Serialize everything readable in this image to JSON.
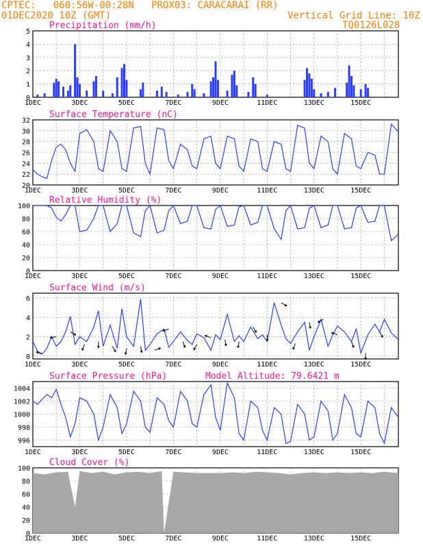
{
  "header": {
    "line1": "CPTEC:   060:56W-00:28N   PROX03: CARACARAI (RR)",
    "line2": "01DEC2020 10Z (GMT)",
    "grid_note": "Vertical Grid Line: 10Z",
    "run_id": "TQ0126L028"
  },
  "colors": {
    "header": "#ff7f00",
    "title": "#ff1493",
    "line": "#2a3cff",
    "cloud": "#a8a8a8",
    "wind_arrow": "#000000"
  },
  "chart_data": [
    {
      "type": "bar",
      "title": "Precipitation (mm/h)",
      "xlim": [
        1,
        16.6
      ],
      "ylim": [
        0,
        5
      ],
      "yticks": [
        0,
        1,
        2,
        3,
        4,
        5
      ],
      "xticks": [
        "1DEC",
        "3DEC",
        "5DEC",
        "7DEC",
        "9DEC",
        "11DEC",
        "13DEC",
        "15DEC"
      ],
      "x": [
        1.2,
        1.5,
        1.9,
        2.0,
        2.1,
        2.3,
        2.5,
        2.6,
        2.8,
        2.9,
        3.0,
        3.3,
        3.6,
        3.7,
        4.0,
        4.4,
        4.6,
        4.8,
        4.9,
        5.0,
        5.6,
        5.7,
        6.3,
        6.5,
        6.7,
        7.2,
        7.6,
        7.8,
        7.9,
        8.3,
        8.6,
        8.7,
        8.8,
        8.9,
        9.3,
        9.5,
        9.6,
        9.7,
        10.2,
        10.4,
        10.5,
        11.0,
        12.6,
        12.7,
        12.8,
        12.9,
        13.0,
        13.3,
        13.6,
        13.9,
        14.4,
        14.5,
        14.6,
        14.7,
        15.0,
        15.2,
        15.3
      ],
      "values": [
        0.2,
        0.3,
        1.1,
        1.4,
        1.2,
        0.8,
        0.5,
        0.9,
        4.0,
        1.5,
        1.0,
        0.5,
        1.2,
        1.6,
        0.5,
        0.3,
        1.5,
        2.2,
        2.5,
        1.3,
        0.6,
        1.1,
        0.5,
        0.8,
        0.4,
        0.2,
        0.4,
        1.0,
        0.6,
        0.3,
        1.2,
        1.5,
        2.7,
        1.3,
        0.5,
        1.7,
        2.0,
        0.9,
        0.4,
        1.5,
        1.0,
        0.2,
        1.3,
        2.2,
        1.8,
        1.4,
        0.6,
        0.3,
        0.4,
        0.7,
        1.1,
        2.4,
        1.6,
        0.9,
        0.6,
        1.0,
        0.7
      ]
    },
    {
      "type": "line",
      "title": "Surface Temperature (nC)",
      "xlim": [
        1,
        16.6
      ],
      "ylim": [
        20,
        32
      ],
      "yticks": [
        20,
        22,
        24,
        26,
        28,
        30,
        32
      ],
      "xticks": [
        "1DEC",
        "3DEC",
        "5DEC",
        "7DEC",
        "9DEC",
        "11DEC",
        "13DEC",
        "15DEC"
      ],
      "x": [
        1.0,
        1.2,
        1.4,
        1.6,
        1.8,
        2.0,
        2.2,
        2.4,
        2.6,
        2.8,
        3.0,
        3.3,
        3.6,
        3.8,
        4.0,
        4.3,
        4.6,
        4.8,
        5.0,
        5.3,
        5.6,
        5.8,
        6.0,
        6.3,
        6.6,
        6.8,
        7.0,
        7.3,
        7.6,
        7.8,
        8.0,
        8.3,
        8.6,
        8.8,
        9.0,
        9.3,
        9.6,
        9.8,
        10.0,
        10.3,
        10.6,
        10.8,
        11.0,
        11.3,
        11.6,
        11.8,
        12.0,
        12.3,
        12.6,
        12.8,
        13.0,
        13.3,
        13.6,
        13.8,
        14.0,
        14.3,
        14.6,
        14.8,
        15.0,
        15.3,
        15.6,
        15.8,
        16.0,
        16.3,
        16.6
      ],
      "values": [
        22.8,
        22.0,
        21.5,
        21.2,
        24.5,
        27.0,
        27.5,
        26.5,
        24.0,
        22.5,
        29.5,
        30.2,
        28.0,
        23.0,
        22.5,
        30.0,
        28.0,
        23.0,
        22.5,
        30.5,
        30.8,
        24.0,
        22.0,
        30.5,
        30.2,
        24.5,
        23.0,
        27.5,
        26.5,
        23.5,
        23.0,
        28.5,
        29.0,
        24.0,
        23.0,
        29.0,
        28.5,
        23.5,
        22.5,
        28.5,
        28.0,
        23.0,
        22.5,
        28.0,
        27.5,
        23.0,
        22.5,
        31.0,
        30.5,
        24.0,
        23.0,
        29.0,
        28.0,
        23.0,
        22.0,
        29.5,
        28.5,
        23.5,
        23.0,
        26.0,
        25.5,
        22.0,
        22.0,
        31.2,
        29.8
      ]
    },
    {
      "type": "line",
      "title": "Relative Humidity (%)",
      "xlim": [
        1,
        16.6
      ],
      "ylim": [
        0,
        100
      ],
      "yticks": [
        0,
        20,
        40,
        60,
        80,
        100
      ],
      "xticks": [
        "1DEC",
        "3DEC",
        "5DEC",
        "7DEC",
        "9DEC",
        "11DEC",
        "13DEC",
        "15DEC"
      ],
      "x": [
        1.0,
        1.2,
        1.4,
        1.6,
        1.8,
        2.0,
        2.2,
        2.4,
        2.6,
        2.8,
        3.0,
        3.3,
        3.6,
        3.8,
        4.0,
        4.3,
        4.6,
        4.8,
        5.0,
        5.3,
        5.6,
        5.8,
        6.0,
        6.3,
        6.6,
        6.8,
        7.0,
        7.3,
        7.6,
        7.8,
        8.0,
        8.3,
        8.6,
        8.8,
        9.0,
        9.3,
        9.6,
        9.8,
        10.0,
        10.3,
        10.6,
        10.8,
        11.0,
        11.3,
        11.6,
        11.8,
        12.0,
        12.3,
        12.6,
        12.8,
        13.0,
        13.3,
        13.6,
        13.8,
        14.0,
        14.3,
        14.6,
        14.8,
        15.0,
        15.3,
        15.6,
        15.8,
        16.0,
        16.3,
        16.6
      ],
      "values": [
        100,
        100,
        100,
        100,
        96,
        82,
        76,
        86,
        100,
        100,
        60,
        62,
        80,
        100,
        100,
        60,
        72,
        100,
        100,
        58,
        52,
        92,
        100,
        58,
        62,
        92,
        100,
        72,
        76,
        100,
        100,
        66,
        64,
        94,
        100,
        68,
        70,
        98,
        100,
        70,
        74,
        100,
        100,
        64,
        48,
        92,
        100,
        64,
        66,
        96,
        100,
        66,
        70,
        100,
        100,
        64,
        66,
        96,
        100,
        74,
        76,
        100,
        100,
        46,
        56
      ]
    },
    {
      "type": "line",
      "title": "Surface Wind (m/s)",
      "xlim": [
        1,
        16.6
      ],
      "ylim": [
        -0.3,
        6.5
      ],
      "yticks": [
        0,
        2,
        4,
        6
      ],
      "xticks": [
        "1DEC",
        "3DEC",
        "5DEC",
        "7DEC",
        "9DEC",
        "11DEC",
        "13DEC",
        "15DEC"
      ],
      "x": [
        1.0,
        1.2,
        1.4,
        1.6,
        1.8,
        2.0,
        2.2,
        2.4,
        2.6,
        2.8,
        3.0,
        3.3,
        3.6,
        3.8,
        4.0,
        4.3,
        4.6,
        4.8,
        5.0,
        5.3,
        5.6,
        5.8,
        6.0,
        6.3,
        6.6,
        6.8,
        7.0,
        7.3,
        7.6,
        7.8,
        8.0,
        8.3,
        8.6,
        8.8,
        9.0,
        9.3,
        9.6,
        9.8,
        10.0,
        10.3,
        10.6,
        10.8,
        11.0,
        11.3,
        11.6,
        11.8,
        12.0,
        12.3,
        12.6,
        12.8,
        13.0,
        13.3,
        13.6,
        13.8,
        14.0,
        14.3,
        14.6,
        14.8,
        15.0,
        15.3,
        15.6,
        15.8,
        16.0,
        16.3,
        16.6
      ],
      "values": [
        1.5,
        0.5,
        0.2,
        0.8,
        2.0,
        1.0,
        1.5,
        2.5,
        4.1,
        1.2,
        2.0,
        1.5,
        3.0,
        4.7,
        1.0,
        3.2,
        0.8,
        4.9,
        2.0,
        1.0,
        5.9,
        0.6,
        1.2,
        2.3,
        2.8,
        0.9,
        1.5,
        2.5,
        1.6,
        1.2,
        2.3,
        1.9,
        0.6,
        2.2,
        1.7,
        4.3,
        1.5,
        2.1,
        1.5,
        3.0,
        1.8,
        2.2,
        1.5,
        5.5,
        3.2,
        1.8,
        1.3,
        2.5,
        3.5,
        0.6,
        2.0,
        3.8,
        1.0,
        2.2,
        3.1,
        2.5,
        1.5,
        2.8,
        0.3,
        2.2,
        3.3,
        2.5,
        3.8,
        2.4,
        1.7
      ],
      "arrows_note": "direction arrows along series"
    },
    {
      "type": "line",
      "title": "Surface Pressure (hPa)",
      "annotation": "Model Altitude: 79.6421 m",
      "xlim": [
        1,
        16.6
      ],
      "ylim": [
        995,
        1005
      ],
      "yticks": [
        996,
        998,
        1000,
        1002,
        1004
      ],
      "xticks": [
        "1DEC",
        "3DEC",
        "5DEC",
        "7DEC",
        "9DEC",
        "11DEC",
        "13DEC",
        "15DEC"
      ],
      "x": [
        1.0,
        1.2,
        1.4,
        1.6,
        1.8,
        2.0,
        2.2,
        2.4,
        2.6,
        2.8,
        3.0,
        3.3,
        3.6,
        3.8,
        4.0,
        4.3,
        4.6,
        4.8,
        5.0,
        5.3,
        5.6,
        5.8,
        6.0,
        6.3,
        6.6,
        6.8,
        7.0,
        7.3,
        7.6,
        7.8,
        8.0,
        8.3,
        8.6,
        8.8,
        9.0,
        9.3,
        9.6,
        9.8,
        10.0,
        10.3,
        10.6,
        10.8,
        11.0,
        11.3,
        11.6,
        11.8,
        12.0,
        12.3,
        12.6,
        12.8,
        13.0,
        13.3,
        13.6,
        13.8,
        14.0,
        14.3,
        14.6,
        14.8,
        15.0,
        15.3,
        15.6,
        15.8,
        16.0,
        16.3,
        16.6
      ],
      "values": [
        1002.0,
        1001.5,
        1002.3,
        1003.0,
        1002.5,
        1003.8,
        1001.5,
        999.5,
        996.5,
        998.5,
        1002.5,
        1002.0,
        1000.0,
        996.0,
        998.0,
        1003.0,
        1001.0,
        997.0,
        998.5,
        1003.5,
        1002.0,
        998.0,
        997.2,
        1002.5,
        1001.5,
        999.0,
        998.0,
        1003.5,
        1002.0,
        998.5,
        998.0,
        1003.0,
        1004.5,
        999.5,
        997.5,
        1004.8,
        1002.5,
        997.0,
        996.0,
        1002.0,
        1001.0,
        997.5,
        996.0,
        1001.0,
        1000.0,
        995.5,
        995.8,
        1001.5,
        1000.0,
        996.0,
        996.5,
        1002.0,
        1000.5,
        996.0,
        997.0,
        1003.0,
        1001.0,
        997.0,
        996.5,
        1002.0,
        1001.0,
        997.0,
        995.5,
        1001.0,
        999.5
      ]
    },
    {
      "type": "area",
      "title": "Cloud Cover (%)",
      "xlim": [
        1,
        16.6
      ],
      "ylim": [
        0,
        100
      ],
      "yticks": [
        0,
        20,
        40,
        60,
        80,
        100
      ],
      "xticks": [
        "1DEC",
        "3DEC",
        "5DEC",
        "7DEC",
        "9DEC",
        "11DEC",
        "13DEC",
        "15DEC"
      ],
      "x": [
        1.0,
        1.5,
        2.0,
        2.5,
        2.8,
        3.0,
        3.5,
        4.0,
        4.5,
        5.0,
        5.5,
        6.0,
        6.5,
        6.6,
        7.0,
        7.5,
        8.0,
        8.5,
        9.0,
        9.5,
        10.0,
        10.5,
        11.0,
        11.5,
        12.0,
        12.5,
        13.0,
        13.5,
        14.0,
        14.5,
        15.0,
        15.5,
        16.0,
        16.6
      ],
      "values": [
        92,
        90,
        93,
        94,
        40,
        95,
        92,
        94,
        90,
        93,
        94,
        92,
        95,
        0,
        94,
        93,
        92,
        92,
        92,
        93,
        92,
        94,
        93,
        92,
        90,
        92,
        93,
        92,
        93,
        92,
        93,
        92,
        94,
        92
      ]
    }
  ]
}
